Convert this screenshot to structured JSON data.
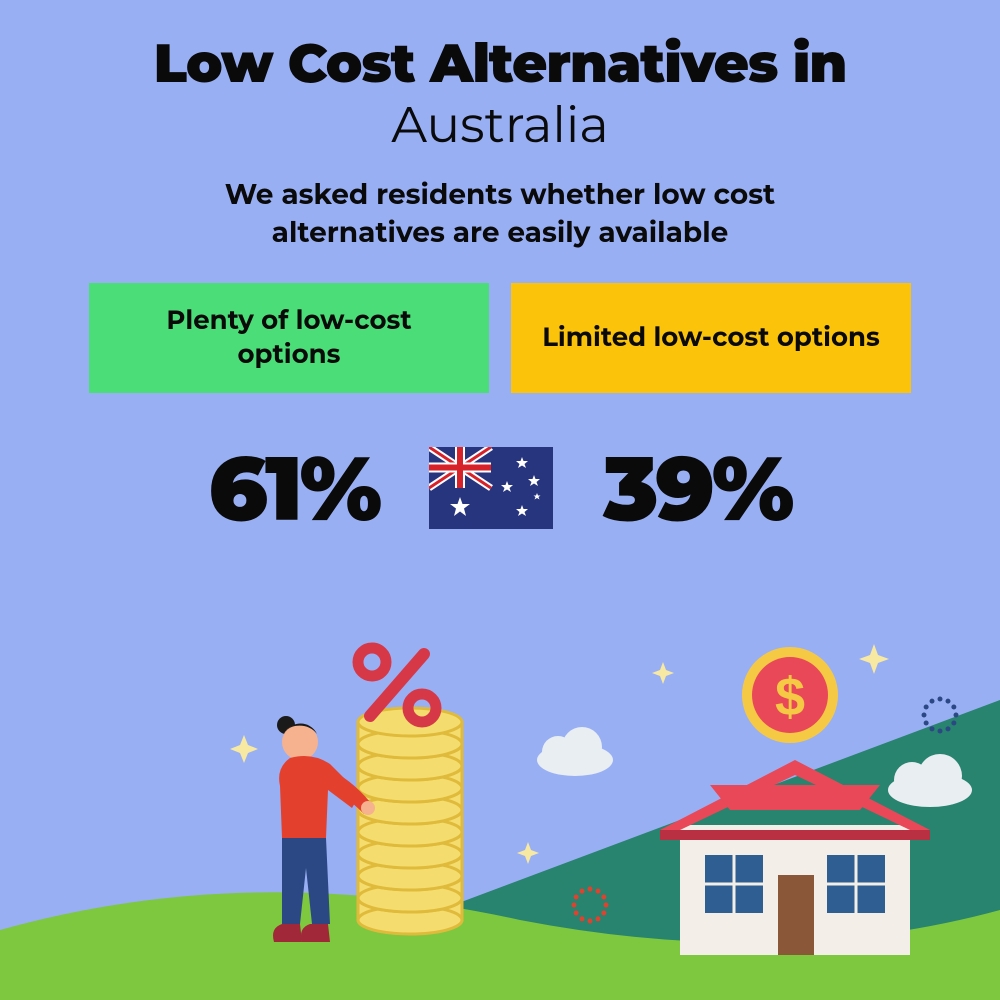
{
  "title_bold": "Low Cost Alternatives in",
  "title_regular": "Australia",
  "subtitle_l1": "We asked residents whether low cost",
  "subtitle_l2": "alternatives are easily available",
  "option_left": {
    "label": "Plenty of low-cost options",
    "bg_color": "#4bdd78",
    "value": "61%"
  },
  "option_right": {
    "label": "Limited low-cost options",
    "bg_color": "#fcc30b",
    "value": "39%"
  },
  "flag": {
    "bg": "#27357e",
    "cross_red": "#d8222a",
    "cross_white": "#ffffff",
    "star_color": "#ffffff"
  },
  "colors": {
    "page_bg": "#99aff3",
    "text": "#0a0a0a",
    "hill_dark": "#28836f",
    "hill_light": "#7dc83f",
    "coin_fill": "#f4dd6e",
    "coin_stroke": "#e0bb3b",
    "percent": "#d73848",
    "person_top": "#e3412e",
    "person_skin": "#f6b28e",
    "person_pants": "#2b4884",
    "person_hair": "#1a1a1a",
    "person_boots": "#a12838",
    "house_wall": "#f3efe8",
    "house_roof": "#e84857",
    "house_roof_dark": "#b93043",
    "house_window": "#2f5f92",
    "house_door": "#8a5738",
    "coin_big_outer": "#f6c945",
    "coin_big_inner": "#e84857",
    "dollar": "#f6c945",
    "cloud": "#e8eef2",
    "sparkle": "#f7e9a1",
    "dotring1": "#2b4884",
    "dotring2": "#e3412e"
  }
}
